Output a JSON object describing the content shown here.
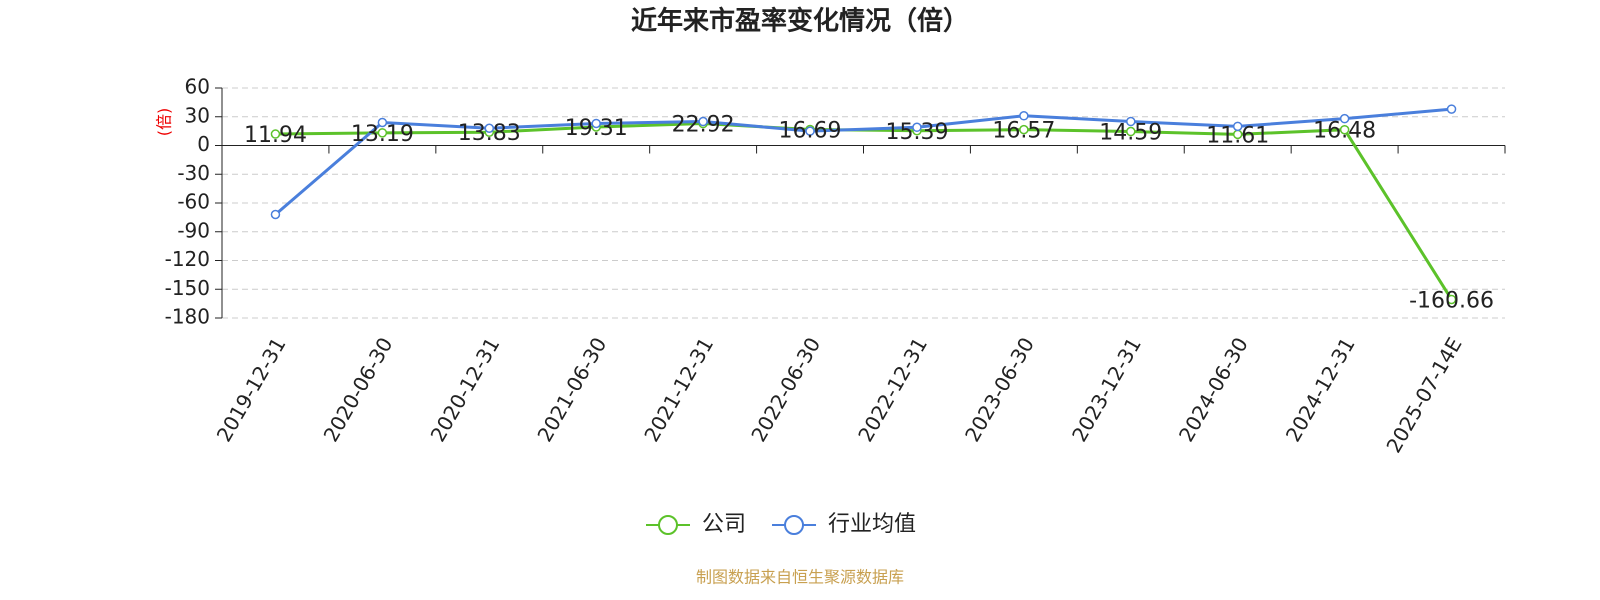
{
  "chart_data": {
    "type": "line",
    "title": "近年来市盈率变化情况（倍）",
    "y_label": "(倍)",
    "categories": [
      "2019-12-31",
      "2020-06-30",
      "2020-12-31",
      "2021-06-30",
      "2021-12-31",
      "2022-06-30",
      "2022-12-31",
      "2023-06-30",
      "2023-12-31",
      "2024-06-30",
      "2024-12-31",
      "2025-07-14E"
    ],
    "series": [
      {
        "name": "公司",
        "color": "#5cc22a",
        "values": [
          11.94,
          13.19,
          13.83,
          19.31,
          22.92,
          16.69,
          15.39,
          16.57,
          14.59,
          11.61,
          16.48,
          -160.66
        ],
        "labels": true
      },
      {
        "name": "行业均值",
        "color": "#4a7fdc",
        "values": [
          -72,
          24,
          18,
          23,
          25,
          15,
          19,
          31,
          25,
          20,
          28,
          38
        ],
        "labels": false
      }
    ],
    "ylim": [
      -180,
      60
    ],
    "yticks": [
      -180,
      -150,
      -120,
      -90,
      -60,
      -30,
      0,
      30,
      60
    ],
    "grid": true
  },
  "source": "制图数据来自恒生聚源数据库"
}
